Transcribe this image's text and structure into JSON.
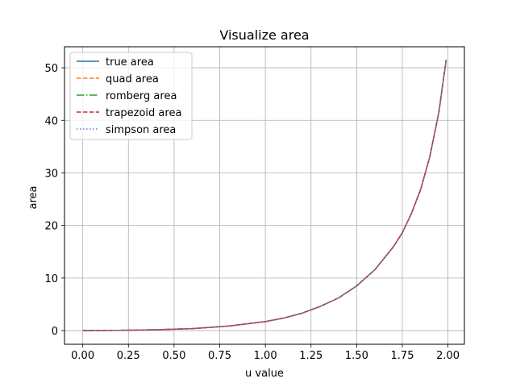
{
  "chart_data": {
    "type": "line",
    "title": "Visualize area",
    "xlabel": "u value",
    "ylabel": "area",
    "xlim": [
      -0.1,
      2.09
    ],
    "ylim": [
      -2.6,
      54.0
    ],
    "xticks": [
      0.0,
      0.25,
      0.5,
      0.75,
      1.0,
      1.25,
      1.5,
      1.75,
      2.0
    ],
    "xtick_labels": [
      "0.00",
      "0.25",
      "0.50",
      "0.75",
      "1.00",
      "1.25",
      "1.50",
      "1.75",
      "2.00"
    ],
    "yticks": [
      0,
      10,
      20,
      30,
      40,
      50
    ],
    "ytick_labels": [
      "0",
      "10",
      "20",
      "30",
      "40",
      "50"
    ],
    "grid": true,
    "legend_position": "upper-left",
    "x": [
      0.0,
      0.2,
      0.4,
      0.6,
      0.8,
      1.0,
      1.1,
      1.2,
      1.3,
      1.4,
      1.5,
      1.6,
      1.7,
      1.75,
      1.8,
      1.85,
      1.9,
      1.95,
      1.99
    ],
    "series": [
      {
        "name": "true area",
        "color": "#1f77b4",
        "style": "solid",
        "values": [
          0.0,
          0.05,
          0.16,
          0.38,
          0.87,
          1.72,
          2.38,
          3.3,
          4.6,
          6.2,
          8.5,
          11.6,
          15.9,
          18.6,
          22.3,
          26.8,
          33.0,
          41.5,
          51.5
        ]
      },
      {
        "name": "quad area",
        "color": "#ff7f0e",
        "style": "dashed",
        "values": [
          0.0,
          0.05,
          0.16,
          0.38,
          0.87,
          1.72,
          2.38,
          3.3,
          4.6,
          6.2,
          8.5,
          11.6,
          15.9,
          18.6,
          22.3,
          26.8,
          33.0,
          41.5,
          51.5
        ]
      },
      {
        "name": "romberg area",
        "color": "#2ca02c",
        "style": "dashdot",
        "values": [
          0.0,
          0.05,
          0.16,
          0.38,
          0.87,
          1.72,
          2.38,
          3.3,
          4.6,
          6.2,
          8.5,
          11.6,
          15.9,
          18.6,
          22.3,
          26.8,
          33.0,
          41.5,
          51.5
        ]
      },
      {
        "name": "trapezoid area",
        "color": "#d62728",
        "style": "dashed",
        "values": [
          0.0,
          0.05,
          0.16,
          0.38,
          0.87,
          1.72,
          2.38,
          3.3,
          4.6,
          6.2,
          8.5,
          11.6,
          15.9,
          18.6,
          22.3,
          26.8,
          33.0,
          41.5,
          51.5
        ]
      },
      {
        "name": "simpson area",
        "color": "#9467bd",
        "style": "dotted",
        "values": [
          0.0,
          0.05,
          0.16,
          0.38,
          0.87,
          1.72,
          2.38,
          3.3,
          4.6,
          6.2,
          8.5,
          11.6,
          15.9,
          18.6,
          22.3,
          26.8,
          33.0,
          41.5,
          51.5
        ]
      }
    ]
  }
}
